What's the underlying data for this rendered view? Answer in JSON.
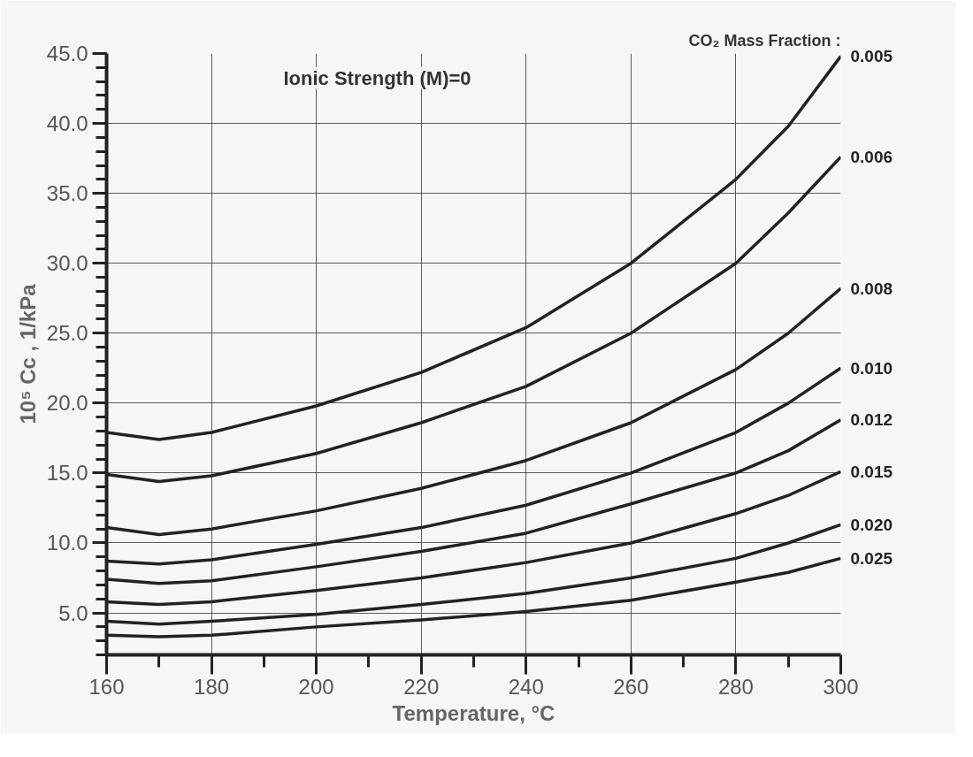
{
  "chart_data": {
    "type": "line",
    "xlabel": "Temperature, °C",
    "ylabel": "10⁵ Cc , 1/kPa",
    "legend_title": "CO₂ Mass Fraction :",
    "annotations": [
      "Ionic Strength (M)=0"
    ],
    "x": [
      160,
      170,
      180,
      200,
      220,
      240,
      260,
      280,
      290,
      300
    ],
    "series": [
      {
        "name": "0.005",
        "color": "#222222",
        "values": [
          17.9,
          17.4,
          17.9,
          19.8,
          22.2,
          25.4,
          30.0,
          36.0,
          39.8,
          44.8
        ]
      },
      {
        "name": "0.006",
        "color": "#222222",
        "values": [
          14.9,
          14.4,
          14.8,
          16.4,
          18.6,
          21.2,
          25.0,
          30.0,
          33.6,
          37.6
        ]
      },
      {
        "name": "0.008",
        "color": "#222222",
        "values": [
          11.1,
          10.6,
          11.0,
          12.3,
          13.9,
          15.9,
          18.6,
          22.4,
          25.0,
          28.2
        ]
      },
      {
        "name": "0.010",
        "color": "#222222",
        "values": [
          8.7,
          8.5,
          8.8,
          9.9,
          11.1,
          12.7,
          15.0,
          17.9,
          20.0,
          22.5
        ]
      },
      {
        "name": "0.012",
        "color": "#222222",
        "values": [
          7.4,
          7.1,
          7.3,
          8.3,
          9.4,
          10.7,
          12.8,
          15.0,
          16.6,
          18.8
        ]
      },
      {
        "name": "0.015",
        "color": "#222222",
        "values": [
          5.8,
          5.6,
          5.8,
          6.6,
          7.5,
          8.6,
          10.0,
          12.1,
          13.4,
          15.1
        ]
      },
      {
        "name": "0.020",
        "color": "#222222",
        "values": [
          4.4,
          4.2,
          4.4,
          4.9,
          5.6,
          6.4,
          7.5,
          8.9,
          10.0,
          11.3
        ]
      },
      {
        "name": "0.025",
        "color": "#222222",
        "values": [
          3.4,
          3.3,
          3.4,
          4.0,
          4.5,
          5.1,
          5.9,
          7.2,
          7.9,
          8.9
        ]
      }
    ],
    "xlim": [
      160,
      300
    ],
    "ylim": [
      2,
      45
    ],
    "xticks": [
      160,
      180,
      200,
      220,
      240,
      260,
      280,
      300
    ],
    "yticks": [
      {
        "value": 5,
        "label": "5.0"
      },
      {
        "value": 10,
        "label": "10.0"
      },
      {
        "value": 15,
        "label": "15.0"
      },
      {
        "value": 20,
        "label": "20.0"
      },
      {
        "value": 25,
        "label": "25.0"
      },
      {
        "value": 30,
        "label": "30.0"
      },
      {
        "value": 35,
        "label": "35.0"
      },
      {
        "value": 40,
        "label": "40.0"
      },
      {
        "value": 45,
        "label": "45.0"
      }
    ],
    "grid": true,
    "legend": false,
    "marker": "none",
    "line_style": "solid"
  }
}
